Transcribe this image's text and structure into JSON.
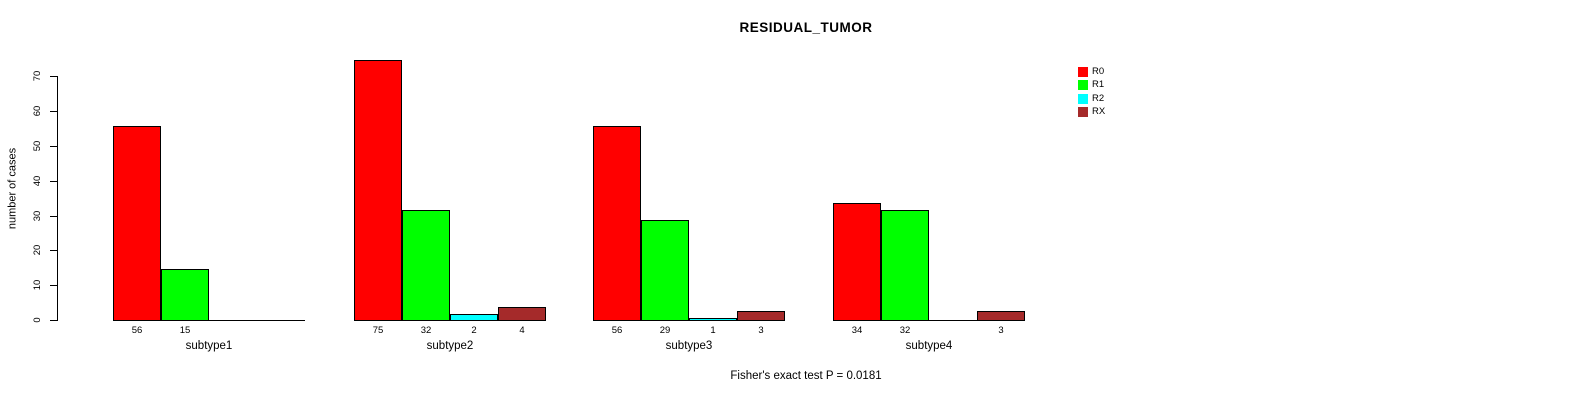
{
  "title": "RESIDUAL_TUMOR",
  "footer": "Fisher's exact test P = 0.0181",
  "chart_data": {
    "type": "bar",
    "title": "RESIDUAL_TUMOR",
    "xlabel": "",
    "ylabel": "number of cases",
    "ylim": [
      0,
      70
    ],
    "yticks": [
      0,
      10,
      20,
      30,
      40,
      50,
      60,
      70
    ],
    "grid": false,
    "legend_position": "top-right",
    "annotation": "Fisher's exact test P = 0.0181",
    "categories": [
      "subtype1",
      "subtype2",
      "subtype3",
      "subtype4"
    ],
    "series": [
      {
        "name": "R0",
        "color": "#FF0000",
        "values": [
          56,
          75,
          56,
          34
        ]
      },
      {
        "name": "R1",
        "color": "#00FF00",
        "values": [
          15,
          32,
          29,
          32
        ]
      },
      {
        "name": "R2",
        "color": "#00FFFF",
        "values": [
          0,
          2,
          1,
          0
        ]
      },
      {
        "name": "RX",
        "color": "#A52A2A",
        "values": [
          0,
          4,
          3,
          3
        ]
      }
    ],
    "value_labels_shown": true,
    "zero_values_unlabeled": true,
    "colors": {
      "axis": "#000000",
      "text": "#000000",
      "background": "#FFFFFF"
    }
  }
}
